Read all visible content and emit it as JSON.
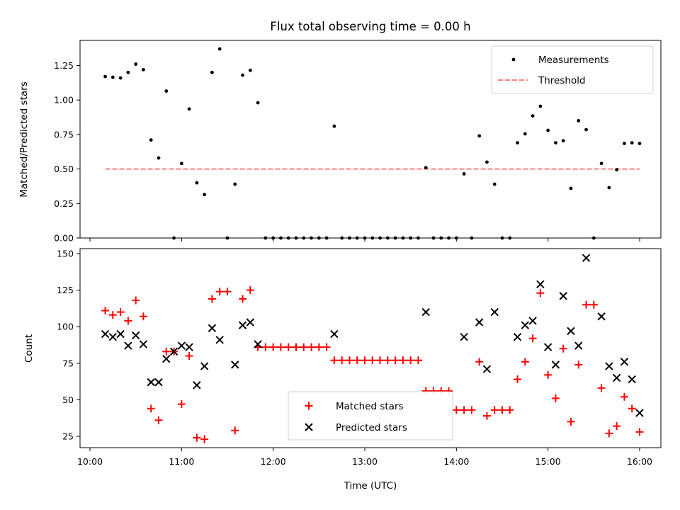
{
  "chart_data": [
    {
      "type": "scatter",
      "title": "Flux total observing time = 0.00 h",
      "xlabel": "",
      "ylabel": "Matched/Predicted stars",
      "xlim": [
        "10:00",
        "16:00"
      ],
      "ylim": [
        0,
        1.44
      ],
      "yticks": [
        "0.00",
        "0.25",
        "0.50",
        "0.75",
        "1.00",
        "1.25"
      ],
      "legend_position": "upper-right",
      "series": [
        {
          "name": "Measurements",
          "marker": "dot",
          "color": "#000000",
          "points": [
            [
              "10:10",
              1.17
            ],
            [
              "10:15",
              1.165
            ],
            [
              "10:20",
              1.16
            ],
            [
              "10:25",
              1.2
            ],
            [
              "10:30",
              1.26
            ],
            [
              "10:35",
              1.22
            ],
            [
              "10:40",
              0.71
            ],
            [
              "10:45",
              0.58
            ],
            [
              "10:50",
              1.065
            ],
            [
              "10:55",
              0.0
            ],
            [
              "11:00",
              0.54
            ],
            [
              "11:05",
              0.935
            ],
            [
              "11:10",
              0.4
            ],
            [
              "11:15",
              0.315
            ],
            [
              "11:20",
              1.2
            ],
            [
              "11:25",
              1.37
            ],
            [
              "11:30",
              0.0
            ],
            [
              "11:35",
              0.39
            ],
            [
              "11:40",
              1.18
            ],
            [
              "11:45",
              1.215
            ],
            [
              "11:50",
              0.98
            ],
            [
              "11:55",
              0.0
            ],
            [
              "12:00",
              0.0
            ],
            [
              "12:05",
              0.0
            ],
            [
              "12:10",
              0.0
            ],
            [
              "12:15",
              0.0
            ],
            [
              "12:20",
              0.0
            ],
            [
              "12:25",
              0.0
            ],
            [
              "12:30",
              0.0
            ],
            [
              "12:35",
              0.0
            ],
            [
              "12:40",
              0.81
            ],
            [
              "12:45",
              0.0
            ],
            [
              "12:50",
              0.0
            ],
            [
              "12:55",
              0.0
            ],
            [
              "13:00",
              0.0
            ],
            [
              "13:05",
              0.0
            ],
            [
              "13:10",
              0.0
            ],
            [
              "13:15",
              0.0
            ],
            [
              "13:20",
              0.0
            ],
            [
              "13:25",
              0.0
            ],
            [
              "13:30",
              0.0
            ],
            [
              "13:35",
              0.0
            ],
            [
              "13:40",
              0.51
            ],
            [
              "13:45",
              0.0
            ],
            [
              "13:50",
              0.0
            ],
            [
              "13:55",
              0.0
            ],
            [
              "14:00",
              0.0
            ],
            [
              "14:05",
              0.465
            ],
            [
              "14:10",
              0.0
            ],
            [
              "14:15",
              0.74
            ],
            [
              "14:20",
              0.55
            ],
            [
              "14:25",
              0.39
            ],
            [
              "14:30",
              0.0
            ],
            [
              "14:35",
              0.0
            ],
            [
              "14:40",
              0.69
            ],
            [
              "14:45",
              0.755
            ],
            [
              "14:50",
              0.885
            ],
            [
              "14:55",
              0.955
            ],
            [
              "15:00",
              0.78
            ],
            [
              "15:05",
              0.69
            ],
            [
              "15:10",
              0.705
            ],
            [
              "15:15",
              0.36
            ],
            [
              "15:20",
              0.85
            ],
            [
              "15:25",
              0.785
            ],
            [
              "15:30",
              0.0
            ],
            [
              "15:35",
              0.54
            ],
            [
              "15:40",
              0.365
            ],
            [
              "15:45",
              0.495
            ],
            [
              "15:50",
              0.685
            ],
            [
              "15:55",
              0.69
            ],
            [
              "16:00",
              0.685
            ]
          ]
        },
        {
          "name": "Threshold",
          "marker": "dashed-line",
          "color": "#ff8080",
          "points": [
            [
              "10:10",
              0.5
            ],
            [
              "16:00",
              0.5
            ]
          ]
        }
      ]
    },
    {
      "type": "scatter",
      "title": "",
      "xlabel": "Time (UTC)",
      "ylabel": "Count",
      "xlim": [
        "10:00",
        "16:00"
      ],
      "ylim": [
        17,
        154
      ],
      "yticks": [
        "25",
        "50",
        "75",
        "100",
        "125",
        "150"
      ],
      "xticks": [
        "10:00",
        "11:00",
        "12:00",
        "13:00",
        "14:00",
        "15:00",
        "16:00"
      ],
      "legend_position": "lower-center",
      "series": [
        {
          "name": "Matched stars",
          "marker": "plus",
          "color": "#ff0000",
          "points": [
            [
              "10:10",
              111
            ],
            [
              "10:15",
              108
            ],
            [
              "10:20",
              110
            ],
            [
              "10:25",
              104
            ],
            [
              "10:30",
              118
            ],
            [
              "10:35",
              107
            ],
            [
              "10:40",
              44
            ],
            [
              "10:45",
              36
            ],
            [
              "10:50",
              83
            ],
            [
              "10:55",
              83
            ],
            [
              "11:00",
              47
            ],
            [
              "11:05",
              80
            ],
            [
              "11:10",
              24
            ],
            [
              "11:15",
              23
            ],
            [
              "11:20",
              119
            ],
            [
              "11:25",
              124
            ],
            [
              "11:30",
              124
            ],
            [
              "11:35",
              29
            ],
            [
              "11:40",
              119
            ],
            [
              "11:45",
              125
            ],
            [
              "11:50",
              86
            ],
            [
              "11:55",
              86
            ],
            [
              "12:00",
              86
            ],
            [
              "12:05",
              86
            ],
            [
              "12:10",
              86
            ],
            [
              "12:15",
              86
            ],
            [
              "12:20",
              86
            ],
            [
              "12:25",
              86
            ],
            [
              "12:30",
              86
            ],
            [
              "12:35",
              86
            ],
            [
              "12:40",
              77
            ],
            [
              "12:45",
              77
            ],
            [
              "12:50",
              77
            ],
            [
              "12:55",
              77
            ],
            [
              "13:00",
              77
            ],
            [
              "13:05",
              77
            ],
            [
              "13:10",
              77
            ],
            [
              "13:15",
              77
            ],
            [
              "13:20",
              77
            ],
            [
              "13:25",
              77
            ],
            [
              "13:30",
              77
            ],
            [
              "13:35",
              77
            ],
            [
              "13:40",
              56
            ],
            [
              "13:45",
              56
            ],
            [
              "13:50",
              56
            ],
            [
              "13:55",
              56
            ],
            [
              "14:00",
              43
            ],
            [
              "14:05",
              43
            ],
            [
              "14:10",
              43
            ],
            [
              "14:15",
              76
            ],
            [
              "14:20",
              39
            ],
            [
              "14:25",
              43
            ],
            [
              "14:30",
              43
            ],
            [
              "14:35",
              43
            ],
            [
              "14:40",
              64
            ],
            [
              "14:45",
              76
            ],
            [
              "14:50",
              92
            ],
            [
              "14:55",
              123
            ],
            [
              "15:00",
              67
            ],
            [
              "15:05",
              51
            ],
            [
              "15:10",
              85
            ],
            [
              "15:15",
              35
            ],
            [
              "15:20",
              74
            ],
            [
              "15:25",
              115
            ],
            [
              "15:30",
              115
            ],
            [
              "15:35",
              58
            ],
            [
              "15:40",
              27
            ],
            [
              "15:45",
              32
            ],
            [
              "15:50",
              52
            ],
            [
              "15:55",
              44
            ],
            [
              "16:00",
              28
            ]
          ]
        },
        {
          "name": "Predicted stars",
          "marker": "x",
          "color": "#000000",
          "points": [
            [
              "10:10",
              95
            ],
            [
              "10:15",
              93
            ],
            [
              "10:20",
              95
            ],
            [
              "10:25",
              87
            ],
            [
              "10:30",
              94
            ],
            [
              "10:35",
              88
            ],
            [
              "10:40",
              62
            ],
            [
              "10:45",
              62
            ],
            [
              "10:50",
              78
            ],
            [
              "10:55",
              83
            ],
            [
              "11:00",
              87
            ],
            [
              "11:05",
              86
            ],
            [
              "11:10",
              60
            ],
            [
              "11:15",
              73
            ],
            [
              "11:20",
              99
            ],
            [
              "11:25",
              91
            ],
            [
              "11:35",
              74
            ],
            [
              "11:40",
              101
            ],
            [
              "11:45",
              103
            ],
            [
              "11:50",
              88
            ],
            [
              "12:40",
              95
            ],
            [
              "13:40",
              110
            ],
            [
              "14:05",
              93
            ],
            [
              "14:15",
              103
            ],
            [
              "14:20",
              71
            ],
            [
              "14:25",
              110
            ],
            [
              "14:40",
              93
            ],
            [
              "14:45",
              101
            ],
            [
              "14:50",
              104
            ],
            [
              "14:55",
              129
            ],
            [
              "15:00",
              86
            ],
            [
              "15:05",
              74
            ],
            [
              "15:10",
              121
            ],
            [
              "15:15",
              97
            ],
            [
              "15:20",
              87
            ],
            [
              "15:25",
              147
            ],
            [
              "15:35",
              107
            ],
            [
              "15:40",
              73
            ],
            [
              "15:45",
              65
            ],
            [
              "15:50",
              76
            ],
            [
              "15:55",
              64
            ],
            [
              "16:00",
              41
            ]
          ]
        }
      ]
    }
  ]
}
